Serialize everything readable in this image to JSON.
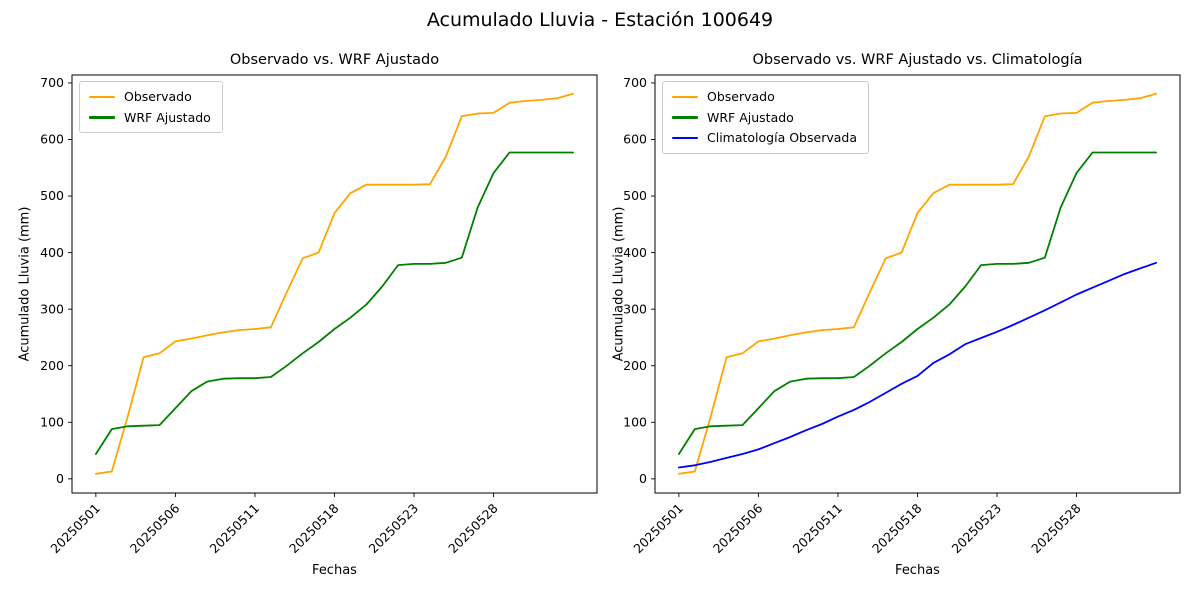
{
  "figure": {
    "title": "Acumulado Lluvia - Estación 100649"
  },
  "colors": {
    "observado": "#FFA500",
    "wrf_ajustado": "#008000",
    "climatologia": "#0000FF",
    "axis": "#000000",
    "legend_border": "#cccccc"
  },
  "chart_data": [
    {
      "type": "line",
      "title": "Observado vs. WRF Ajustado",
      "xlabel": "Fechas",
      "ylabel": "Acumulado Lluvia (mm)",
      "grid": false,
      "legend_position": "upper left",
      "x_index_count": 31,
      "x_tick_indices": [
        0,
        5,
        10,
        15,
        20,
        25
      ],
      "x_tick_labels": [
        "20250501",
        "20250506",
        "20250511",
        "20250518",
        "20250523",
        "20250528"
      ],
      "x_tick_rotation": 45,
      "y_ticks": [
        0,
        100,
        200,
        300,
        400,
        500,
        600,
        700
      ],
      "ylim": [
        -25,
        714
      ],
      "series": [
        {
          "name": "Observado",
          "color": "#FFA500",
          "values": [
            9,
            13,
            110,
            215,
            222,
            243,
            248,
            254,
            259,
            263,
            265,
            268,
            330,
            390,
            400,
            470,
            505,
            520,
            520,
            520,
            520,
            521,
            570,
            641,
            646,
            647,
            665,
            668,
            670,
            673,
            681
          ]
        },
        {
          "name": "WRF Ajustado",
          "color": "#008000",
          "values": [
            44,
            88,
            93,
            94,
            95,
            125,
            155,
            172,
            177,
            178,
            178,
            180,
            200,
            222,
            242,
            265,
            285,
            308,
            340,
            378,
            380,
            380,
            382,
            391,
            480,
            541,
            577,
            577,
            577,
            577,
            577
          ]
        }
      ]
    },
    {
      "type": "line",
      "title": "Observado vs. WRF Ajustado vs. Climatología",
      "xlabel": "Fechas",
      "ylabel": "Acumulado Lluvia (mm)",
      "grid": false,
      "legend_position": "upper left",
      "x_index_count": 31,
      "x_tick_indices": [
        0,
        5,
        10,
        15,
        20,
        25
      ],
      "x_tick_labels": [
        "20250501",
        "20250506",
        "20250511",
        "20250518",
        "20250523",
        "20250528"
      ],
      "x_tick_rotation": 45,
      "y_ticks": [
        0,
        100,
        200,
        300,
        400,
        500,
        600,
        700
      ],
      "ylim": [
        -25,
        714
      ],
      "series": [
        {
          "name": "Observado",
          "color": "#FFA500",
          "values": [
            9,
            13,
            110,
            215,
            222,
            243,
            248,
            254,
            259,
            263,
            265,
            268,
            330,
            390,
            400,
            470,
            505,
            520,
            520,
            520,
            520,
            521,
            570,
            641,
            646,
            647,
            665,
            668,
            670,
            673,
            681
          ]
        },
        {
          "name": "WRF Ajustado",
          "color": "#008000",
          "values": [
            44,
            88,
            93,
            94,
            95,
            125,
            155,
            172,
            177,
            178,
            178,
            180,
            200,
            222,
            242,
            265,
            285,
            308,
            340,
            378,
            380,
            380,
            382,
            391,
            480,
            541,
            577,
            577,
            577,
            577,
            577
          ]
        },
        {
          "name": "Climatología Observada",
          "color": "#0000FF",
          "values": [
            20,
            24,
            30,
            37,
            44,
            52,
            63,
            74,
            86,
            97,
            110,
            122,
            136,
            152,
            168,
            182,
            205,
            220,
            238,
            249,
            260,
            272,
            285,
            298,
            312,
            326,
            338,
            350,
            362,
            372,
            382
          ]
        }
      ]
    }
  ]
}
